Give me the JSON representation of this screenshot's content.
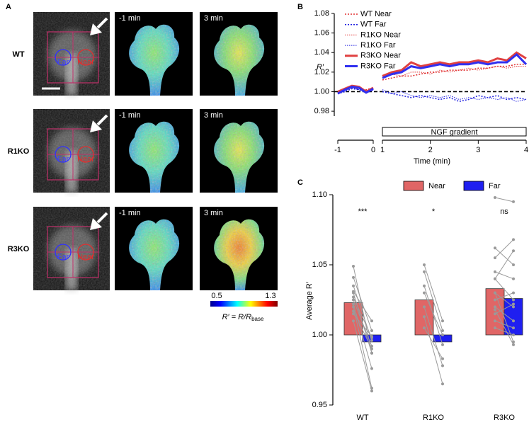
{
  "panel_labels": [
    "A",
    "B",
    "C"
  ],
  "panel_a": {
    "rows": [
      "WT",
      "R1KO",
      "R3KO"
    ],
    "times": [
      "-1 min",
      "3 min"
    ],
    "regions": [
      "Far",
      "Near"
    ],
    "colorbar": {
      "min": 0.5,
      "max": 1.3,
      "label": "R′ = R/R",
      "label_sub": "base"
    }
  },
  "chart_data": [
    {
      "type": "line",
      "ylabel": "R′",
      "xlabel": "Time (min)",
      "x": [
        -1,
        -0.8,
        -0.6,
        -0.4,
        -0.2,
        0,
        1,
        1.2,
        1.4,
        1.6,
        1.8,
        2,
        2.2,
        2.4,
        2.6,
        2.8,
        3,
        3.2,
        3.4,
        3.6,
        3.8,
        4
      ],
      "series": [
        {
          "name": "WT Near",
          "color": "#e03030",
          "line_style": "dotted",
          "values": [
            1.0,
            1.002,
            1.004,
            1.003,
            1.002,
            1.004,
            1.012,
            1.014,
            1.016,
            1.016,
            1.018,
            1.02,
            1.02,
            1.022,
            1.022,
            1.022,
            1.024,
            1.024,
            1.026,
            1.026,
            1.028,
            1.028
          ]
        },
        {
          "name": "WT Far",
          "color": "#2020e0",
          "line_style": "dotted",
          "values": [
            0.998,
            1.0,
            1.003,
            1.002,
            0.999,
            1.002,
            1.0,
            0.998,
            0.996,
            0.994,
            0.996,
            0.994,
            0.992,
            0.994,
            0.99,
            0.992,
            0.996,
            0.994,
            0.996,
            0.992,
            0.994,
            0.992
          ]
        },
        {
          "name": "R1KO Near",
          "color": "#e03030",
          "line_style": "thin-dotted",
          "values": [
            1.0,
            1.002,
            1.005,
            1.004,
            1.001,
            1.003,
            1.014,
            1.018,
            1.016,
            1.02,
            1.02,
            1.018,
            1.022,
            1.02,
            1.022,
            1.024,
            1.022,
            1.024,
            1.026,
            1.024,
            1.026,
            1.026
          ]
        },
        {
          "name": "R1KO Far",
          "color": "#2020e0",
          "line_style": "thin-dotted",
          "values": [
            0.999,
            1.001,
            1.004,
            1.002,
            1.0,
            1.001,
            1.002,
            0.998,
            1.0,
            0.996,
            0.994,
            0.996,
            0.994,
            0.996,
            0.992,
            0.994,
            0.992,
            0.994,
            0.992,
            0.994,
            0.99,
            0.992
          ]
        },
        {
          "name": "R3KO Near",
          "color": "#e04040",
          "line_style": "thick",
          "values": [
            1.0,
            1.003,
            1.006,
            1.005,
            1.0,
            1.004,
            1.016,
            1.02,
            1.022,
            1.03,
            1.026,
            1.028,
            1.03,
            1.028,
            1.03,
            1.03,
            1.032,
            1.03,
            1.034,
            1.032,
            1.04,
            1.034
          ]
        },
        {
          "name": "R3KO Far",
          "color": "#3030f0",
          "line_style": "thick",
          "values": [
            0.998,
            1.002,
            1.005,
            1.004,
            0.999,
            1.003,
            1.014,
            1.018,
            1.02,
            1.026,
            1.024,
            1.026,
            1.028,
            1.026,
            1.028,
            1.028,
            1.03,
            1.028,
            1.03,
            1.03,
            1.038,
            1.028
          ]
        }
      ],
      "xlim": [
        -1,
        4
      ],
      "x_break": [
        0,
        1
      ],
      "ylim": [
        0.975,
        1.08
      ],
      "xticks": [
        -1,
        0,
        1,
        2,
        3,
        4
      ],
      "yticks": [
        0.98,
        {
          "value": 1,
          "label": "1.00"
        },
        1.02,
        1.04,
        1.06,
        1.08
      ],
      "reference_line": 1,
      "annotation": {
        "text": "NGF gradient",
        "from": 1,
        "to": 4
      }
    },
    {
      "type": "bar",
      "ylabel": "Average R′",
      "categories": [
        "WT",
        "R1KO",
        "R3KO"
      ],
      "series": [
        {
          "name": "Near",
          "color": "#e06666",
          "values": [
            1.023,
            1.025,
            1.033
          ],
          "points": [
            [
              1.049,
              1.041,
              1.035,
              1.031,
              1.027,
              1.025,
              1.022,
              1.02,
              1.017,
              1.015,
              1.01,
              1.03
            ],
            [
              1.05,
              1.045,
              1.035,
              1.03,
              1.02,
              1.013,
              1.005
            ],
            [
              1.098,
              1.062,
              1.055,
              1.045,
              1.04,
              1.03,
              1.025,
              1.02,
              1.015,
              1.01,
              1.04,
              1.03,
              1.018,
              1.005
            ]
          ]
        },
        {
          "name": "Far",
          "color": "#1f1ff0",
          "values": [
            0.995,
            0.995,
            1.026
          ],
          "points": [
            [
              0.987,
              1.003,
              0.996,
              1.01,
              0.998,
              0.992,
              0.976,
              0.962,
              0.99,
              0.999,
              0.96,
              0.987
            ],
            [
              1.01,
              1.003,
              0.993,
              1.0,
              0.978,
              0.965,
              0.983
            ],
            [
              1.095,
              1.05,
              1.068,
              1.04,
              1.06,
              1.02,
              1.03,
              1.01,
              1.022,
              1.005,
              1.025,
              0.995,
              0.993,
              1.0
            ]
          ]
        }
      ],
      "ylim": [
        0.95,
        1.1
      ],
      "yticks": [
        0.95,
        {
          "value": 1,
          "label": "1.00"
        },
        1.05,
        {
          "value": 1.1,
          "label": "1.10"
        }
      ],
      "bar_base": 1,
      "significance": [
        "***",
        "*",
        "ns"
      ],
      "legend": "top"
    }
  ]
}
